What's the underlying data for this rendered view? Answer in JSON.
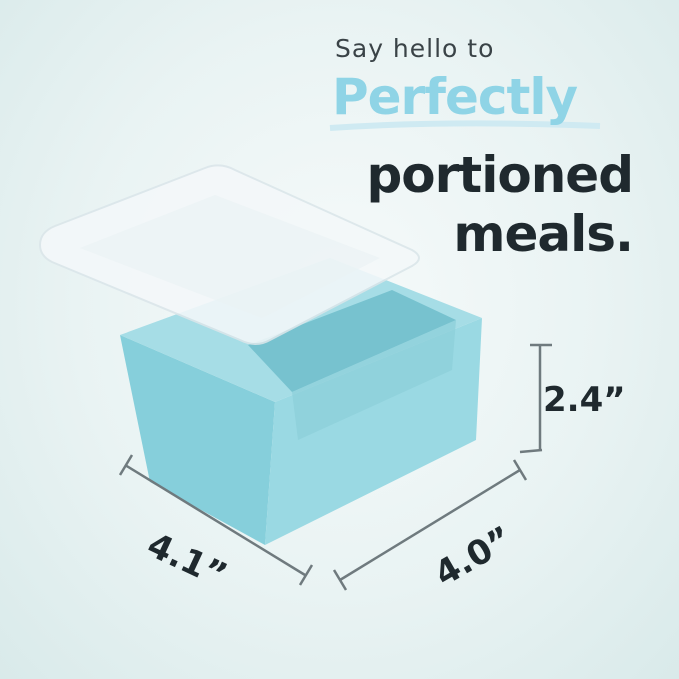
{
  "headline": {
    "line1": "Say hello to",
    "line2": "Perfectly",
    "line3": "portioned",
    "line4": "meals."
  },
  "dimensions": {
    "height": "2.4”",
    "width": "4.1”",
    "depth": "4.0”"
  },
  "colors": {
    "accent": "#8fd4e6",
    "text_dark": "#1f292e",
    "container_body": "#8ed3de",
    "dimension_line": "#6f7a7e"
  }
}
